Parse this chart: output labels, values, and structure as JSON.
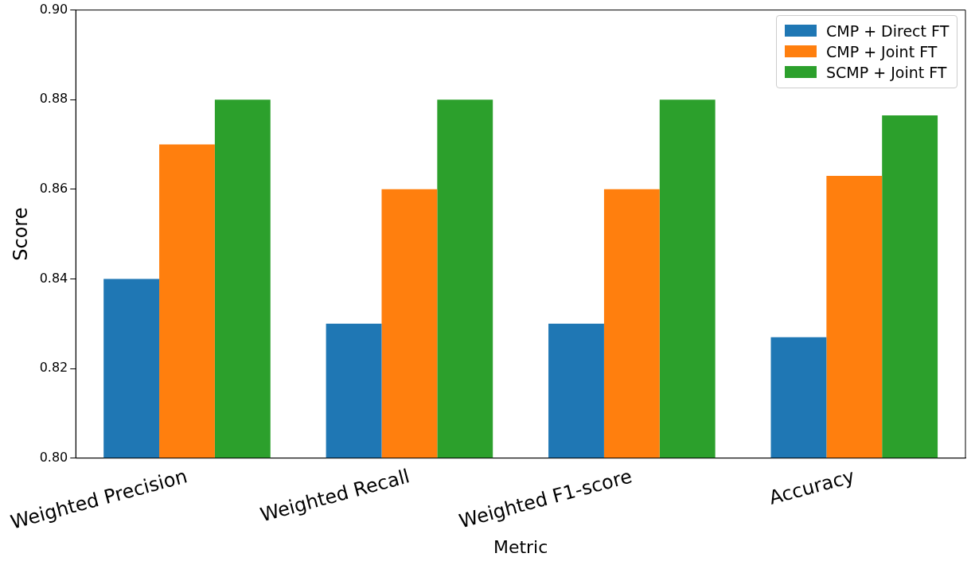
{
  "chart_data": {
    "type": "bar",
    "xlabel": "Metric",
    "ylabel": "Score",
    "categories": [
      "Weighted Precision",
      "Weighted Recall",
      "Weighted F1-score",
      "Accuracy"
    ],
    "series": [
      {
        "name": "CMP + Direct FT",
        "color": "#1f77b4",
        "values": [
          0.84,
          0.83,
          0.83,
          0.827
        ]
      },
      {
        "name": "CMP + Joint FT",
        "color": "#ff7f0e",
        "values": [
          0.87,
          0.86,
          0.86,
          0.863
        ]
      },
      {
        "name": "SCMP + Joint FT",
        "color": "#2ca02c",
        "values": [
          0.88,
          0.88,
          0.88,
          0.8765
        ]
      }
    ],
    "ylim": [
      0.8,
      0.9
    ],
    "yticks": [
      {
        "value": 0.8,
        "label": "0.80"
      },
      {
        "value": 0.82,
        "label": "0.82"
      },
      {
        "value": 0.84,
        "label": "0.84"
      },
      {
        "value": 0.86,
        "label": "0.86"
      },
      {
        "value": 0.88,
        "label": "0.88"
      },
      {
        "value": 0.9,
        "label": "0.90"
      }
    ],
    "grid": false,
    "legend": "top right"
  }
}
